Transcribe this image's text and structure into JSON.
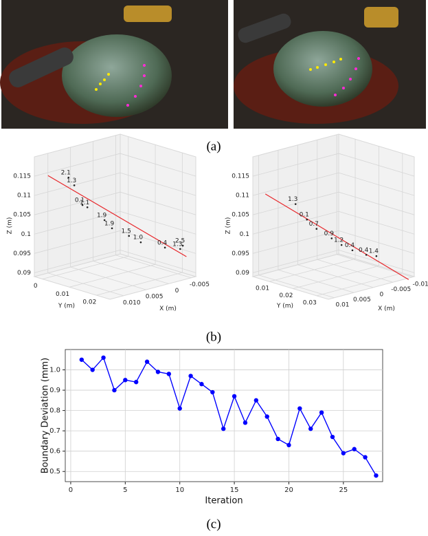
{
  "figure": {
    "captions": [
      "(a)",
      "(b)",
      "(c)"
    ]
  },
  "chart_data": [
    {
      "type": "scatter3d",
      "xlabel": "X (m)",
      "ylabel": "Y (m)",
      "zlabel": "Z (m)",
      "xlim": [
        0.013,
        -0.006
      ],
      "ylim": [
        -0.003,
        0.025
      ],
      "zlim": [
        0.089,
        0.12
      ],
      "xticks": [
        {
          "value": 0.01,
          "label": "0.010"
        },
        0.005,
        0,
        -0.005
      ],
      "yticks": [
        0,
        0.01,
        0.02
      ],
      "zticks": [
        0.09,
        0.095,
        0.1,
        0.105,
        0.11,
        0.115
      ],
      "line": {
        "color": "#e8262a",
        "x": [
          0.0125,
          -0.0056
        ],
        "y": [
          0.0012,
          0.0222
        ],
        "z": [
          0.1159,
          0.0937
        ]
      },
      "points": {
        "color": "#222222",
        "label_color": "#e8262a",
        "x": [
          0.0098,
          0.009,
          0.0079,
          0.0073,
          0.005,
          0.004,
          0.0018,
          0.0002,
          -0.003,
          -0.005,
          -0.0054
        ],
        "y": [
          0.0043,
          0.0051,
          0.0063,
          0.0071,
          0.0096,
          0.0107,
          0.0133,
          0.015,
          0.0186,
          0.0209,
          0.0212
        ],
        "z": [
          0.1152,
          0.1131,
          0.1079,
          0.1073,
          0.1038,
          0.1016,
          0.0995,
          0.0977,
          0.0961,
          0.0956,
          0.0964
        ],
        "labels": [
          "2.1",
          "1.3",
          "0.1",
          "1.1",
          "1.9",
          "1.9",
          "1.5",
          "1.0",
          "0.4",
          "1.3",
          "2.5"
        ]
      }
    },
    {
      "type": "scatter3d",
      "xlabel": "X (m)",
      "ylabel": "Y (m)",
      "zlabel": "Z (m)",
      "xlim": [
        0.0115,
        -0.0105
      ],
      "ylim": [
        0.003,
        0.035
      ],
      "zlim": [
        0.089,
        0.12
      ],
      "xticks": [
        0.01,
        0.005,
        0,
        -0.005,
        -0.01
      ],
      "yticks": [
        0.01,
        0.02,
        0.03
      ],
      "zticks": [
        0.09,
        0.095,
        0.1,
        0.105,
        0.11,
        0.115
      ],
      "line": {
        "color": "#e8262a",
        "x": [
          0.0112,
          -0.011
        ],
        "y": [
          0.0078,
          0.0318
        ],
        "z": [
          0.1112,
          0.0875
        ]
      },
      "points": {
        "color": "#222222",
        "label_color": "#e8262a",
        "x": [
          0.0066,
          0.0049,
          0.0034,
          0.0011,
          -0.0004,
          -0.0021,
          -0.0042,
          -0.0057
        ],
        "y": [
          0.013,
          0.015,
          0.0166,
          0.0192,
          0.0209,
          0.0227,
          0.0251,
          0.0269
        ],
        "z": [
          0.1083,
          0.1042,
          0.1017,
          0.0991,
          0.0973,
          0.0958,
          0.0945,
          0.0941
        ],
        "labels": [
          "1.3",
          "0.1",
          "0.7",
          "0.9",
          "1.2",
          "0.4",
          "0.4",
          "1.4"
        ]
      }
    },
    {
      "type": "line",
      "xlabel": "Iteration",
      "ylabel": "Boundary Deviation (mm)",
      "x": [
        1,
        2,
        3,
        4,
        5,
        6,
        7,
        8,
        9,
        10,
        11,
        12,
        13,
        14,
        15,
        16,
        17,
        18,
        19,
        20,
        21,
        22,
        23,
        24,
        25,
        26,
        27,
        28
      ],
      "series": [
        {
          "color": "#0000ff",
          "values": [
            1.05,
            1.0,
            1.06,
            0.9,
            0.95,
            0.94,
            1.04,
            0.99,
            0.98,
            0.81,
            0.97,
            0.93,
            0.89,
            0.71,
            0.87,
            0.74,
            0.85,
            0.77,
            0.66,
            0.63,
            0.81,
            0.71,
            0.79,
            0.67,
            0.59,
            0.61,
            0.57,
            0.48
          ]
        }
      ],
      "xlim": [
        -0.5,
        28.6
      ],
      "ylim": [
        0.45,
        1.1
      ],
      "xticks": [
        0,
        5,
        10,
        15,
        20,
        25
      ],
      "yticks": [
        0.5,
        0.6,
        0.7,
        0.8,
        0.9,
        {
          "value": 1,
          "label": "1.0"
        }
      ],
      "grid": true
    }
  ]
}
